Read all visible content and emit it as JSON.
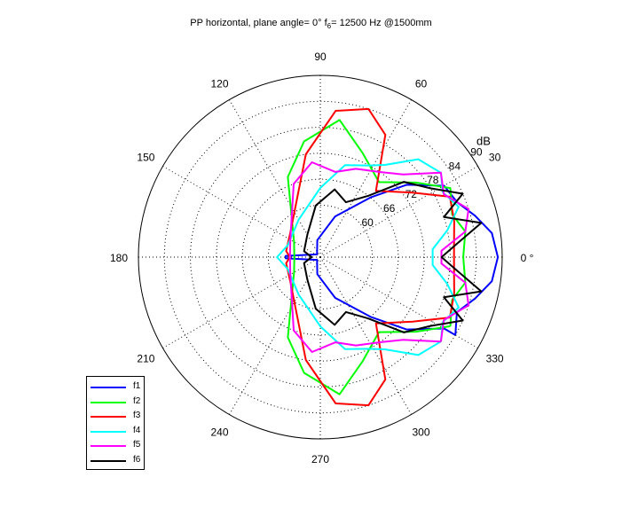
{
  "title": {
    "prefix": "PP horizontal, plane angle= 0° f",
    "sub": "6",
    "suffix": "= 12500 Hz @1500mm"
  },
  "chart_data": {
    "type": "polar",
    "r_unit": "dB",
    "r_lim": [
      48,
      90
    ],
    "r_ticks": [
      "60",
      "66",
      "72",
      "78",
      "84",
      "90"
    ],
    "angle_ticks": [
      "0 °",
      "30",
      "60",
      "90",
      "120",
      "150",
      "180",
      "210",
      "240",
      "270",
      "300",
      "330"
    ],
    "grid": true,
    "legend_placement": "bottom-left",
    "series": [
      {
        "name": "f1",
        "color": "#0000ff",
        "points": [
          [
            -30,
            84
          ],
          [
            -22,
            82
          ],
          [
            -15,
            85
          ],
          [
            -8,
            88
          ],
          [
            0,
            89
          ],
          [
            8,
            88
          ],
          [
            15,
            85
          ],
          [
            22,
            82
          ],
          [
            30,
            81
          ],
          [
            40,
            74
          ],
          [
            50,
            66
          ],
          [
            70,
            58
          ],
          [
            100,
            52
          ],
          [
            140,
            49
          ],
          [
            178,
            56
          ],
          [
            182,
            56
          ],
          [
            220,
            49
          ],
          [
            260,
            52
          ],
          [
            290,
            58
          ],
          [
            310,
            66
          ],
          [
            320,
            74
          ],
          [
            330,
            81
          ]
        ]
      },
      {
        "name": "f2",
        "color": "#00ff00",
        "points": [
          [
            -28,
            82
          ],
          [
            -18,
            80
          ],
          [
            -10,
            82
          ],
          [
            0,
            81
          ],
          [
            10,
            82
          ],
          [
            18,
            80
          ],
          [
            28,
            82
          ],
          [
            38,
            76
          ],
          [
            52,
            70
          ],
          [
            68,
            74
          ],
          [
            82,
            80
          ],
          [
            98,
            75
          ],
          [
            112,
            68
          ],
          [
            150,
            55
          ],
          [
            178,
            54
          ],
          [
            182,
            54
          ],
          [
            210,
            55
          ],
          [
            248,
            68
          ],
          [
            262,
            75
          ],
          [
            278,
            80
          ],
          [
            292,
            74
          ],
          [
            308,
            70
          ],
          [
            322,
            76
          ]
        ]
      },
      {
        "name": "f3",
        "color": "#ff0000",
        "points": [
          [
            -25,
            81
          ],
          [
            -15,
            80
          ],
          [
            -5,
            79
          ],
          [
            5,
            79
          ],
          [
            15,
            80
          ],
          [
            25,
            81
          ],
          [
            35,
            74
          ],
          [
            50,
            68
          ],
          [
            62,
            80
          ],
          [
            72,
            84
          ],
          [
            84,
            82
          ],
          [
            98,
            72
          ],
          [
            140,
            57
          ],
          [
            170,
            56
          ],
          [
            180,
            55
          ],
          [
            190,
            56
          ],
          [
            220,
            57
          ],
          [
            262,
            72
          ],
          [
            276,
            82
          ],
          [
            288,
            84
          ],
          [
            298,
            80
          ],
          [
            310,
            68
          ],
          [
            325,
            74
          ]
        ]
      },
      {
        "name": "f4",
        "color": "#00ffff",
        "points": [
          [
            -35,
            82
          ],
          [
            -28,
            80
          ],
          [
            -20,
            82
          ],
          [
            -12,
            78
          ],
          [
            -4,
            74
          ],
          [
            4,
            74
          ],
          [
            12,
            78
          ],
          [
            20,
            82
          ],
          [
            28,
            80
          ],
          [
            35,
            82
          ],
          [
            45,
            80
          ],
          [
            55,
            74
          ],
          [
            62,
            72
          ],
          [
            75,
            70
          ],
          [
            90,
            64
          ],
          [
            120,
            58
          ],
          [
            160,
            56
          ],
          [
            180,
            58
          ],
          [
            200,
            56
          ],
          [
            240,
            58
          ],
          [
            270,
            64
          ],
          [
            285,
            70
          ],
          [
            298,
            72
          ],
          [
            305,
            74
          ],
          [
            315,
            80
          ]
        ]
      },
      {
        "name": "f5",
        "color": "#ff00ff",
        "points": [
          [
            -35,
            82
          ],
          [
            -27,
            80
          ],
          [
            -18,
            84
          ],
          [
            -10,
            82
          ],
          [
            -3,
            76
          ],
          [
            3,
            76
          ],
          [
            10,
            82
          ],
          [
            18,
            84
          ],
          [
            27,
            80
          ],
          [
            35,
            82
          ],
          [
            45,
            75
          ],
          [
            55,
            72
          ],
          [
            68,
            70
          ],
          [
            80,
            68
          ],
          [
            95,
            70
          ],
          [
            110,
            66
          ],
          [
            150,
            56
          ],
          [
            180,
            55
          ],
          [
            210,
            56
          ],
          [
            250,
            66
          ],
          [
            265,
            70
          ],
          [
            280,
            68
          ],
          [
            292,
            70
          ],
          [
            305,
            72
          ],
          [
            315,
            75
          ]
        ]
      },
      {
        "name": "f6",
        "color": "#000000",
        "points": [
          [
            -32,
            78
          ],
          [
            -24,
            84
          ],
          [
            -18,
            78
          ],
          [
            -12,
            86
          ],
          [
            -6,
            80
          ],
          [
            0,
            76
          ],
          [
            6,
            80
          ],
          [
            12,
            86
          ],
          [
            18,
            78
          ],
          [
            24,
            84
          ],
          [
            32,
            78
          ],
          [
            42,
            74
          ],
          [
            52,
            66
          ],
          [
            65,
            62
          ],
          [
            78,
            64
          ],
          [
            95,
            60
          ],
          [
            120,
            54
          ],
          [
            160,
            52
          ],
          [
            180,
            50
          ],
          [
            200,
            52
          ],
          [
            240,
            54
          ],
          [
            265,
            60
          ],
          [
            282,
            64
          ],
          [
            295,
            62
          ],
          [
            308,
            66
          ],
          [
            318,
            74
          ]
        ]
      }
    ]
  },
  "colors": {
    "axes": "#000000",
    "grid": "#000000",
    "background": "#ffffff"
  }
}
